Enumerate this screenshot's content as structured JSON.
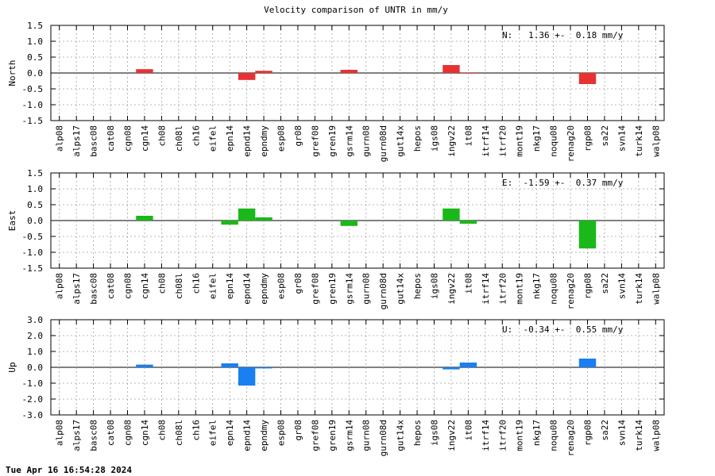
{
  "title": "Velocity comparison of UNTR in mm/y",
  "timestamp": "Tue Apr 16 16:54:28 2024",
  "chart_data": [
    {
      "type": "bar",
      "ylabel": "North",
      "ylim": [
        -1.5,
        1.5
      ],
      "yticks": [
        "-1.5",
        "-1.0",
        "-0.5",
        "0.0",
        "0.5",
        "1.0",
        "1.5"
      ],
      "grid": true,
      "color": "#e83232",
      "annotation": "N:   1.36 +-  0.18 mm/y",
      "categories": [
        "alp08",
        "alps17",
        "basc08",
        "cat08",
        "cgn08",
        "cgn14",
        "ch08",
        "ch08l",
        "ch16",
        "eifel",
        "epn14",
        "epnd14",
        "epndmy",
        "esp08",
        "gr08",
        "gref08",
        "gren19",
        "gsrm14",
        "gurn08",
        "gurn08d",
        "gut14x",
        "hepos",
        "igs08",
        "ingv22",
        "it08",
        "itrf14",
        "itrf20",
        "mont19",
        "nkg17",
        "noqu08",
        "renag20",
        "rgp08",
        "sa22",
        "svn14",
        "turk14",
        "walp08"
      ],
      "values": [
        0,
        0,
        0,
        0,
        0,
        0.12,
        0,
        0,
        0,
        0,
        0,
        -0.22,
        0.07,
        0,
        0,
        0,
        0,
        0.1,
        0,
        0,
        0,
        0,
        0,
        0.25,
        0.02,
        0,
        0,
        0,
        0,
        0,
        0,
        -0.35,
        0,
        0,
        0,
        0
      ]
    },
    {
      "type": "bar",
      "ylabel": "East",
      "ylim": [
        -1.5,
        1.5
      ],
      "yticks": [
        "-1.5",
        "-1.0",
        "-0.5",
        "0.0",
        "0.5",
        "1.0",
        "1.5"
      ],
      "grid": true,
      "color": "#1ab81a",
      "annotation": "E:  -1.59 +-  0.37 mm/y",
      "categories": [
        "alp08",
        "alps17",
        "basc08",
        "cat08",
        "cgn08",
        "cgn14",
        "ch08",
        "ch08l",
        "ch16",
        "eifel",
        "epn14",
        "epnd14",
        "epndmy",
        "esp08",
        "gr08",
        "gref08",
        "gren19",
        "gsrm14",
        "gurn08",
        "gurn08d",
        "gut14x",
        "hepos",
        "igs08",
        "ingv22",
        "it08",
        "itrf14",
        "itrf20",
        "mont19",
        "nkg17",
        "noqu08",
        "renag20",
        "rgp08",
        "sa22",
        "svn14",
        "turk14",
        "walp08"
      ],
      "values": [
        0,
        0,
        0,
        0,
        0,
        0.15,
        0,
        0,
        0,
        0,
        -0.13,
        0.38,
        0.1,
        0,
        0,
        0,
        0,
        -0.17,
        0,
        0,
        0,
        0,
        0,
        0.38,
        -0.1,
        0,
        0,
        0,
        0,
        0,
        0,
        -0.88,
        0,
        0,
        0,
        0
      ]
    },
    {
      "type": "bar",
      "ylabel": "Up",
      "ylim": [
        -3.0,
        3.0
      ],
      "yticks": [
        "-3.0",
        "-2.0",
        "-1.0",
        "0.0",
        "1.0",
        "2.0",
        "3.0"
      ],
      "grid": true,
      "color": "#1a7ff0",
      "annotation": "U:  -0.34 +-  0.55 mm/y",
      "categories": [
        "alp08",
        "alps17",
        "basc08",
        "cat08",
        "cgn08",
        "cgn14",
        "ch08",
        "ch08l",
        "ch16",
        "eifel",
        "epn14",
        "epnd14",
        "epndmy",
        "esp08",
        "gr08",
        "gref08",
        "gren19",
        "gsrm14",
        "gurn08",
        "gurn08d",
        "gut14x",
        "hepos",
        "igs08",
        "ingv22",
        "it08",
        "itrf14",
        "itrf20",
        "mont19",
        "nkg17",
        "noqu08",
        "renag20",
        "rgp08",
        "sa22",
        "svn14",
        "turk14",
        "walp08"
      ],
      "values": [
        0,
        0,
        0,
        0,
        0,
        0.17,
        0,
        0,
        0,
        0,
        0.25,
        -1.15,
        -0.07,
        0,
        0,
        0,
        0,
        0,
        0,
        0,
        0,
        0,
        0,
        -0.13,
        0.3,
        0,
        0,
        0,
        0,
        0,
        0,
        0.55,
        0,
        0,
        0,
        0
      ]
    }
  ]
}
